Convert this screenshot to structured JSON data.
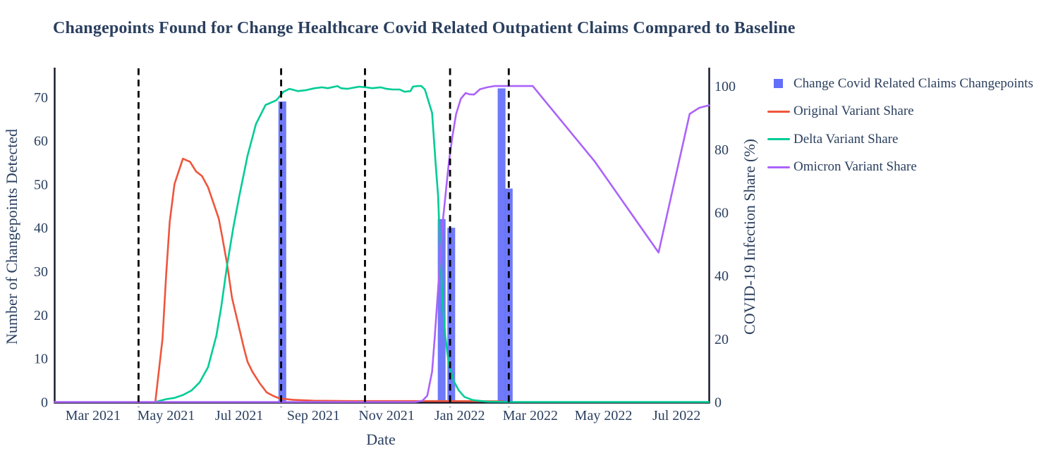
{
  "title": "Changepoints Found for Change Healthcare Covid Related Outpatient Claims Compared to Baseline",
  "colors": {
    "text": "#2a3f5f",
    "axis_line": "#101426",
    "changepoint_dash": "#000000",
    "bar_blue": "#636efa",
    "original_red": "#ef553b",
    "delta_teal": "#00cc96",
    "omicron_purple": "#ab63fa"
  },
  "legend": {
    "items": [
      {
        "label": "Change Covid Related Claims Changepoints",
        "swatch": "square",
        "color": "#636efa"
      },
      {
        "label": "Original Variant Share",
        "swatch": "line",
        "color": "#ef553b"
      },
      {
        "label": "Delta Variant Share",
        "swatch": "line",
        "color": "#00cc96"
      },
      {
        "label": "Omicron Variant Share",
        "swatch": "line",
        "color": "#ab63fa"
      }
    ]
  },
  "chart_data": {
    "type": "bar+line",
    "title": "Changepoints Found for Change Healthcare Covid Related Outpatient Claims Compared to Baseline",
    "grid": false,
    "legend_position": "right-top",
    "x_axis": {
      "label": "Date",
      "range": [
        "2021-01-28",
        "2022-07-28"
      ],
      "ticks": [
        {
          "date": "2021-03-01",
          "label": "Mar 2021"
        },
        {
          "date": "2021-05-01",
          "label": "May 2021"
        },
        {
          "date": "2021-07-01",
          "label": "Jul 2021"
        },
        {
          "date": "2021-09-01",
          "label": "Sep 2021"
        },
        {
          "date": "2021-11-01",
          "label": "Nov 2021"
        },
        {
          "date": "2022-01-01",
          "label": "Jan 2022"
        },
        {
          "date": "2022-03-01",
          "label": "Mar 2022"
        },
        {
          "date": "2022-05-01",
          "label": "May 2022"
        },
        {
          "date": "2022-07-01",
          "label": "Jul 2022"
        }
      ]
    },
    "y_left": {
      "label": "Number of Changepoints Detected",
      "range": [
        0,
        76.6
      ],
      "ticks": [
        0,
        10,
        20,
        30,
        40,
        50,
        60,
        70
      ]
    },
    "y_right": {
      "label": "COVID-19 Infection Share (%)",
      "range": [
        0,
        105.6
      ],
      "ticks": [
        0,
        20,
        40,
        60,
        80,
        100
      ]
    },
    "changepoint_vlines": {
      "style": "dashed-black-vertical",
      "dates": [
        "2021-04-08",
        "2021-08-05",
        "2021-10-14",
        "2021-12-24",
        "2022-02-11"
      ]
    },
    "bars": {
      "name": "Change Covid Related Claims Changepoints",
      "axis": "left",
      "color": "#636efa",
      "width_days": 6.5,
      "points": [
        {
          "date": "2021-08-06",
          "value": 69
        },
        {
          "date": "2021-12-17",
          "value": 42
        },
        {
          "date": "2021-12-25",
          "value": 40
        },
        {
          "date": "2022-02-05",
          "value": 72
        },
        {
          "date": "2022-02-11",
          "value": 49
        }
      ]
    },
    "series": [
      {
        "name": "Original Variant Share",
        "axis": "right",
        "color": "#ef553b",
        "points": [
          [
            "2021-04-22",
            0
          ],
          [
            "2021-04-28",
            20
          ],
          [
            "2021-05-01",
            40
          ],
          [
            "2021-05-04",
            57
          ],
          [
            "2021-05-08",
            69
          ],
          [
            "2021-05-15",
            77
          ],
          [
            "2021-05-21",
            76
          ],
          [
            "2021-05-26",
            73
          ],
          [
            "2021-05-31",
            71.5
          ],
          [
            "2021-06-05",
            68
          ],
          [
            "2021-06-10",
            62.5
          ],
          [
            "2021-06-14",
            58
          ],
          [
            "2021-06-17",
            52
          ],
          [
            "2021-06-21",
            43.5
          ],
          [
            "2021-06-25",
            33
          ],
          [
            "2021-06-30",
            25
          ],
          [
            "2021-07-05",
            17
          ],
          [
            "2021-07-08",
            12.7
          ],
          [
            "2021-07-12",
            9.6
          ],
          [
            "2021-07-18",
            6
          ],
          [
            "2021-07-24",
            3
          ],
          [
            "2021-07-30",
            1.8
          ],
          [
            "2021-08-04",
            1.1
          ],
          [
            "2021-08-15",
            0.7
          ],
          [
            "2021-09-01",
            0.4
          ],
          [
            "2021-10-01",
            0.3
          ],
          [
            "2021-11-15",
            0.3
          ],
          [
            "2021-12-20",
            0.3
          ],
          [
            "2022-02-06",
            0.2
          ]
        ]
      },
      {
        "name": "Delta Variant Share",
        "axis": "right",
        "color": "#00cc96",
        "points": [
          [
            "2021-04-22",
            0
          ],
          [
            "2021-05-01",
            0.9
          ],
          [
            "2021-05-08",
            1.3
          ],
          [
            "2021-05-15",
            2.2
          ],
          [
            "2021-05-22",
            3.6
          ],
          [
            "2021-05-29",
            6.2
          ],
          [
            "2021-06-05",
            11
          ],
          [
            "2021-06-12",
            21
          ],
          [
            "2021-06-16",
            30
          ],
          [
            "2021-06-21",
            43.5
          ],
          [
            "2021-06-26",
            55
          ],
          [
            "2021-07-01",
            65
          ],
          [
            "2021-07-08",
            78
          ],
          [
            "2021-07-15",
            88
          ],
          [
            "2021-07-23",
            94
          ],
          [
            "2021-08-01",
            95.5
          ],
          [
            "2021-08-07",
            98.2
          ],
          [
            "2021-08-12",
            99.1
          ],
          [
            "2021-08-19",
            98.4
          ],
          [
            "2021-08-26",
            98.7
          ],
          [
            "2021-09-02",
            99.3
          ],
          [
            "2021-09-08",
            99.6
          ],
          [
            "2021-09-13",
            99.3
          ],
          [
            "2021-09-21",
            100
          ],
          [
            "2021-09-24",
            99.3
          ],
          [
            "2021-09-29",
            99.1
          ],
          [
            "2021-10-09",
            99.8
          ],
          [
            "2021-10-15",
            99.6
          ],
          [
            "2021-10-20",
            99.3
          ],
          [
            "2021-10-27",
            99.6
          ],
          [
            "2021-11-01",
            99.1
          ],
          [
            "2021-11-06",
            98.9
          ],
          [
            "2021-11-12",
            98.9
          ],
          [
            "2021-11-16",
            98.2
          ],
          [
            "2021-11-21",
            98.4
          ],
          [
            "2021-11-23",
            99.8
          ],
          [
            "2021-11-27",
            100
          ],
          [
            "2021-11-30",
            100
          ],
          [
            "2021-12-03",
            98.9
          ],
          [
            "2021-12-09",
            91.5
          ],
          [
            "2021-12-12",
            75.2
          ],
          [
            "2021-12-14",
            65.4
          ],
          [
            "2021-12-16",
            45.3
          ],
          [
            "2021-12-18",
            30.6
          ],
          [
            "2021-12-20",
            20.8
          ],
          [
            "2021-12-23",
            11.8
          ],
          [
            "2021-12-27",
            6.7
          ],
          [
            "2021-12-31",
            3.8
          ],
          [
            "2022-01-05",
            1.6
          ],
          [
            "2022-01-12",
            0.6
          ],
          [
            "2022-01-24",
            0.1
          ],
          [
            "2022-02-15",
            0
          ],
          [
            "2022-07-28",
            0
          ]
        ]
      },
      {
        "name": "Omicron Variant Share",
        "axis": "right",
        "color": "#ab63fa",
        "points": [
          [
            "2021-01-28",
            0
          ],
          [
            "2021-11-25",
            0
          ],
          [
            "2021-12-01",
            0.4
          ],
          [
            "2021-12-05",
            2
          ],
          [
            "2021-12-09",
            9.6
          ],
          [
            "2021-12-11",
            19.4
          ],
          [
            "2021-12-14",
            35.7
          ],
          [
            "2021-12-18",
            57.4
          ],
          [
            "2021-12-23",
            75.9
          ],
          [
            "2021-12-26",
            84.2
          ],
          [
            "2021-12-29",
            91.1
          ],
          [
            "2022-01-02",
            96
          ],
          [
            "2022-01-06",
            97.8
          ],
          [
            "2022-01-09",
            97.4
          ],
          [
            "2022-01-13",
            97.3
          ],
          [
            "2022-01-18",
            99
          ],
          [
            "2022-01-24",
            99.6
          ],
          [
            "2022-01-30",
            100
          ],
          [
            "2022-03-03",
            100
          ],
          [
            "2022-04-24",
            76
          ],
          [
            "2022-06-16",
            47.3
          ],
          [
            "2022-07-12",
            91.2
          ],
          [
            "2022-07-20",
            93.1
          ],
          [
            "2022-07-28",
            93.9
          ]
        ]
      }
    ]
  }
}
